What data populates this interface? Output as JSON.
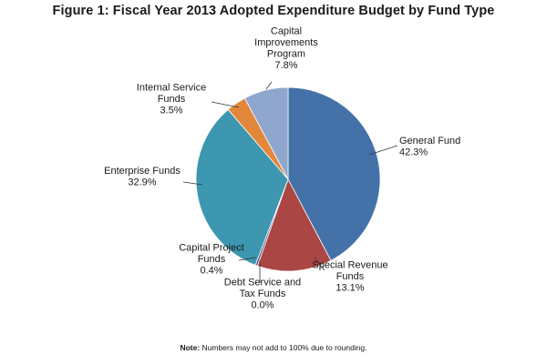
{
  "chart_data": {
    "type": "pie",
    "title": "Figure 1: Fiscal Year 2013 Adopted Expenditure Budget by Fund Type",
    "start_angle_deg": 0,
    "direction": "clockwise",
    "slices": [
      {
        "label_lines": [
          "General Fund"
        ],
        "value_label": "42.3%",
        "value": 42.3,
        "color": "#4472A8"
      },
      {
        "label_lines": [
          "Special Revenue",
          "Funds"
        ],
        "value_label": "13.1%",
        "value": 13.1,
        "color": "#AA4644"
      },
      {
        "label_lines": [
          "Debt Service and",
          "Tax Funds"
        ],
        "value_label": "0.0%",
        "value": 0.0,
        "color": "#7E9B46"
      },
      {
        "label_lines": [
          "Capital Project",
          "Funds"
        ],
        "value_label": "0.4%",
        "value": 0.4,
        "color": "#6C5590"
      },
      {
        "label_lines": [
          "Enterprise Funds"
        ],
        "value_label": "32.9%",
        "value": 32.9,
        "color": "#3D97B0"
      },
      {
        "label_lines": [
          "Internal Service",
          "Funds"
        ],
        "value_label": "3.5%",
        "value": 3.5,
        "color": "#E2873C"
      },
      {
        "label_lines": [
          "Capital",
          "Improvements",
          "Program"
        ],
        "value_label": "7.8%",
        "value": 7.8,
        "color": "#8FA7CE"
      }
    ]
  },
  "note": {
    "label": "Note:",
    "text": " Numbers may not add to 100% due to rounding."
  }
}
